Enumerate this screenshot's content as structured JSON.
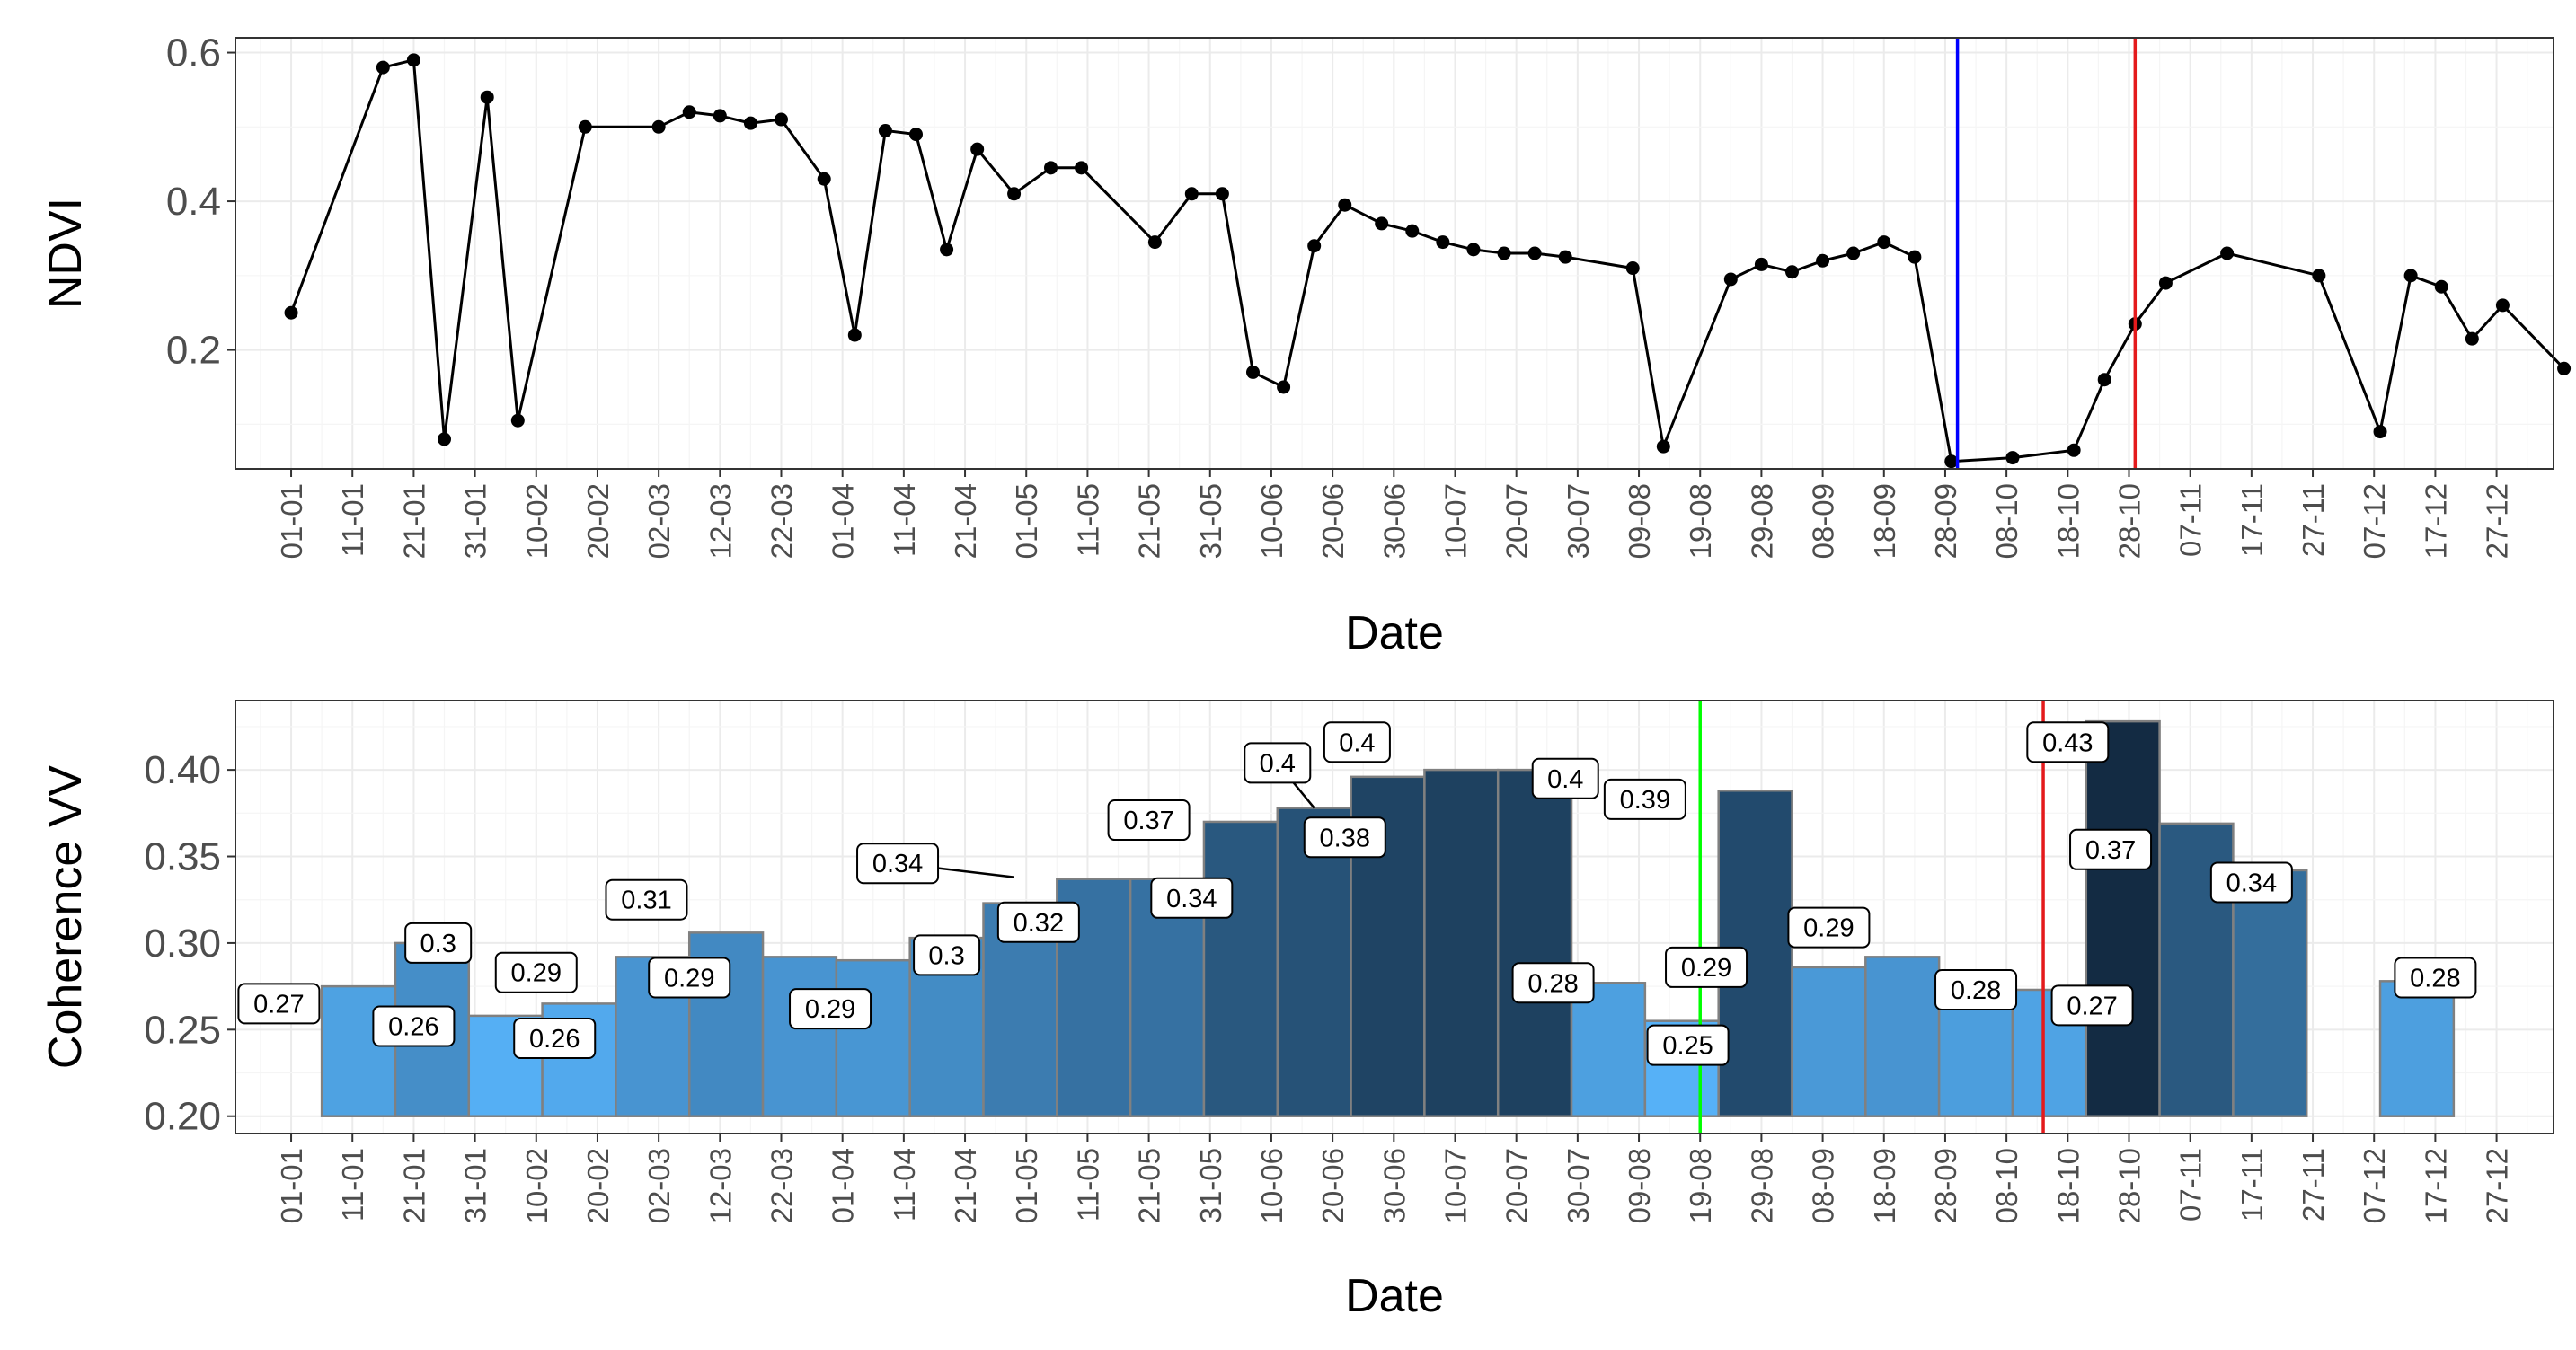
{
  "chart_data": [
    {
      "type": "line",
      "xlabel": "Date",
      "ylabel": "NDVI",
      "x_ticks": [
        "01-01",
        "11-01",
        "21-01",
        "31-01",
        "10-02",
        "20-02",
        "02-03",
        "12-03",
        "22-03",
        "01-04",
        "11-04",
        "21-04",
        "01-05",
        "11-05",
        "21-05",
        "31-05",
        "10-06",
        "20-06",
        "30-06",
        "10-07",
        "20-07",
        "30-07",
        "09-08",
        "19-08",
        "29-08",
        "08-09",
        "18-09",
        "28-09",
        "08-10",
        "18-10",
        "28-10",
        "07-11",
        "17-11",
        "27-11",
        "07-12",
        "17-12",
        "27-12"
      ],
      "y_ticks": [
        "0.2",
        "0.4",
        "0.6"
      ],
      "ylim": [
        0.04,
        0.62
      ],
      "grid": true,
      "series": [
        {
          "color": "#000000",
          "points": [
            [
              "01-01",
              0.25
            ],
            [
              "16-01",
              0.58
            ],
            [
              "21-01",
              0.59
            ],
            [
              "26-01",
              0.08
            ],
            [
              "02-02",
              0.54
            ],
            [
              "07-02",
              0.105
            ],
            [
              "18-02",
              0.5
            ],
            [
              "02-03",
              0.5
            ],
            [
              "07-03",
              0.52
            ],
            [
              "12-03",
              0.515
            ],
            [
              "17-03",
              0.505
            ],
            [
              "22-03",
              0.51
            ],
            [
              "29-03",
              0.43
            ],
            [
              "03-04",
              0.22
            ],
            [
              "08-04",
              0.495
            ],
            [
              "13-04",
              0.49
            ],
            [
              "18-04",
              0.335
            ],
            [
              "23-04",
              0.47
            ],
            [
              "29-04",
              0.41
            ],
            [
              "05-05",
              0.445
            ],
            [
              "10-05",
              0.445
            ],
            [
              "22-05",
              0.345
            ],
            [
              "28-05",
              0.41
            ],
            [
              "02-06",
              0.41
            ],
            [
              "07-06",
              0.17
            ],
            [
              "12-06",
              0.15
            ],
            [
              "17-06",
              0.34
            ],
            [
              "22-06",
              0.395
            ],
            [
              "28-06",
              0.37
            ],
            [
              "03-07",
              0.36
            ],
            [
              "08-07",
              0.345
            ],
            [
              "13-07",
              0.335
            ],
            [
              "18-07",
              0.33
            ],
            [
              "23-07",
              0.33
            ],
            [
              "28-07",
              0.325
            ],
            [
              "08-08",
              0.31
            ],
            [
              "13-08",
              0.07
            ],
            [
              "24-08",
              0.295
            ],
            [
              "29-08",
              0.315
            ],
            [
              "03-09",
              0.305
            ],
            [
              "08-09",
              0.32
            ],
            [
              "13-09",
              0.33
            ],
            [
              "18-09",
              0.345
            ],
            [
              "23-09",
              0.325
            ],
            [
              "29-09",
              0.05
            ],
            [
              "09-10",
              0.055
            ],
            [
              "19-10",
              0.065
            ],
            [
              "24-10",
              0.16
            ],
            [
              "29-10",
              0.235
            ],
            [
              "03-11",
              0.29
            ],
            [
              "13-11",
              0.33
            ],
            [
              "28-11",
              0.3
            ],
            [
              "08-12",
              0.09
            ],
            [
              "13-12",
              0.3
            ],
            [
              "18-12",
              0.285
            ],
            [
              "23-12",
              0.215
            ],
            [
              "28-12",
              0.26
            ],
            [
              "07-01",
              0.175
            ]
          ]
        }
      ],
      "vlines": [
        {
          "x": "30-09",
          "color": "#0000ff"
        },
        {
          "x": "29-10",
          "color": "#e41a1c"
        }
      ]
    },
    {
      "type": "bar",
      "xlabel": "Date",
      "ylabel": "Coherence VV",
      "x_ticks": [
        "01-01",
        "11-01",
        "21-01",
        "31-01",
        "10-02",
        "20-02",
        "02-03",
        "12-03",
        "22-03",
        "01-04",
        "11-04",
        "21-04",
        "01-05",
        "11-05",
        "21-05",
        "31-05",
        "10-06",
        "20-06",
        "30-06",
        "10-07",
        "20-07",
        "30-07",
        "09-08",
        "19-08",
        "29-08",
        "08-09",
        "18-09",
        "28-09",
        "08-10",
        "18-10",
        "28-10",
        "07-11",
        "17-11",
        "27-11",
        "07-12",
        "17-12",
        "27-12"
      ],
      "y_ticks": [
        "0.20",
        "0.25",
        "0.30",
        "0.35",
        "0.40"
      ],
      "ylim": [
        0.19,
        0.44
      ],
      "grid": true,
      "bars": [
        {
          "start": "06-01",
          "end": "18-01",
          "value": 0.275
        },
        {
          "start": "18-01",
          "end": "30-01",
          "value": 0.3
        },
        {
          "start": "30-01",
          "end": "11-02",
          "value": 0.258
        },
        {
          "start": "11-02",
          "end": "23-02",
          "value": 0.265
        },
        {
          "start": "23-02",
          "end": "07-03",
          "value": 0.292
        },
        {
          "start": "07-03",
          "end": "19-03",
          "value": 0.306
        },
        {
          "start": "19-03",
          "end": "31-03",
          "value": 0.292
        },
        {
          "start": "31-03",
          "end": "12-04",
          "value": 0.29
        },
        {
          "start": "12-04",
          "end": "24-04",
          "value": 0.303
        },
        {
          "start": "24-04",
          "end": "06-05",
          "value": 0.323
        },
        {
          "start": "06-05",
          "end": "18-05",
          "value": 0.337
        },
        {
          "start": "18-05",
          "end": "30-05",
          "value": 0.337
        },
        {
          "start": "30-05",
          "end": "11-06",
          "value": 0.37
        },
        {
          "start": "11-06",
          "end": "23-06",
          "value": 0.378
        },
        {
          "start": "23-06",
          "end": "05-07",
          "value": 0.396
        },
        {
          "start": "05-07",
          "end": "17-07",
          "value": 0.4
        },
        {
          "start": "17-07",
          "end": "29-07",
          "value": 0.4
        },
        {
          "start": "29-07",
          "end": "10-08",
          "value": 0.277
        },
        {
          "start": "10-08",
          "end": "22-08",
          "value": 0.255
        },
        {
          "start": "22-08",
          "end": "03-09",
          "value": 0.388
        },
        {
          "start": "03-09",
          "end": "15-09",
          "value": 0.286
        },
        {
          "start": "15-09",
          "end": "27-09",
          "value": 0.292
        },
        {
          "start": "27-09",
          "end": "09-10",
          "value": 0.28
        },
        {
          "start": "09-10",
          "end": "21-10",
          "value": 0.273
        },
        {
          "start": "21-10",
          "end": "02-11",
          "value": 0.428
        },
        {
          "start": "02-11",
          "end": "14-11",
          "value": 0.369
        },
        {
          "start": "14-11",
          "end": "26-11",
          "value": 0.342
        },
        {
          "start": "08-12",
          "end": "20-12",
          "value": 0.278
        }
      ],
      "labels": [
        {
          "text": "0.27",
          "x": "30-12",
          "y": 0.265
        },
        {
          "text": "0.3",
          "x": "25-01",
          "y": 0.3
        },
        {
          "text": "0.26",
          "x": "21-01",
          "y": 0.252
        },
        {
          "text": "0.29",
          "x": "10-02",
          "y": 0.283
        },
        {
          "text": "0.26",
          "x": "13-02",
          "y": 0.245
        },
        {
          "text": "0.31",
          "x": "28-02",
          "y": 0.325
        },
        {
          "text": "0.29",
          "x": "07-03",
          "y": 0.28
        },
        {
          "text": "0.29",
          "x": "30-03",
          "y": 0.262
        },
        {
          "text": "0.34",
          "x": "10-04",
          "y": 0.346,
          "tx": "29-04",
          "ty": 0.338
        },
        {
          "text": "0.3",
          "x": "18-04",
          "y": 0.293
        },
        {
          "text": "0.32",
          "x": "03-05",
          "y": 0.312
        },
        {
          "text": "0.37",
          "x": "21-05",
          "y": 0.371
        },
        {
          "text": "0.34",
          "x": "28-05",
          "y": 0.326
        },
        {
          "text": "0.4",
          "x": "11-06",
          "y": 0.404,
          "tx": "17-06",
          "ty": 0.378
        },
        {
          "text": "0.38",
          "x": "22-06",
          "y": 0.361
        },
        {
          "text": "0.4",
          "x": "24-06",
          "y": 0.416
        },
        {
          "text": "0.4",
          "x": "28-07",
          "y": 0.395
        },
        {
          "text": "0.28",
          "x": "26-07",
          "y": 0.277
        },
        {
          "text": "0.39",
          "x": "10-08",
          "y": 0.383
        },
        {
          "text": "0.29",
          "x": "20-08",
          "y": 0.286
        },
        {
          "text": "0.25",
          "x": "17-08",
          "y": 0.241
        },
        {
          "text": "0.29",
          "x": "09-09",
          "y": 0.309
        },
        {
          "text": "0.28",
          "x": "03-10",
          "y": 0.273
        },
        {
          "text": "0.27",
          "x": "22-10",
          "y": 0.264
        },
        {
          "text": "0.43",
          "x": "18-10",
          "y": 0.416
        },
        {
          "text": "0.37",
          "x": "25-10",
          "y": 0.354
        },
        {
          "text": "0.34",
          "x": "17-11",
          "y": 0.335
        },
        {
          "text": "0.28",
          "x": "17-12",
          "y": 0.28
        }
      ],
      "colors": {
        "low": "#56B1F7",
        "high": "#132B43",
        "bar_border": "#808080"
      },
      "vlines": [
        {
          "x": "19-08",
          "color": "#00ff00"
        },
        {
          "x": "14-10",
          "color": "#e41a1c"
        }
      ]
    }
  ]
}
